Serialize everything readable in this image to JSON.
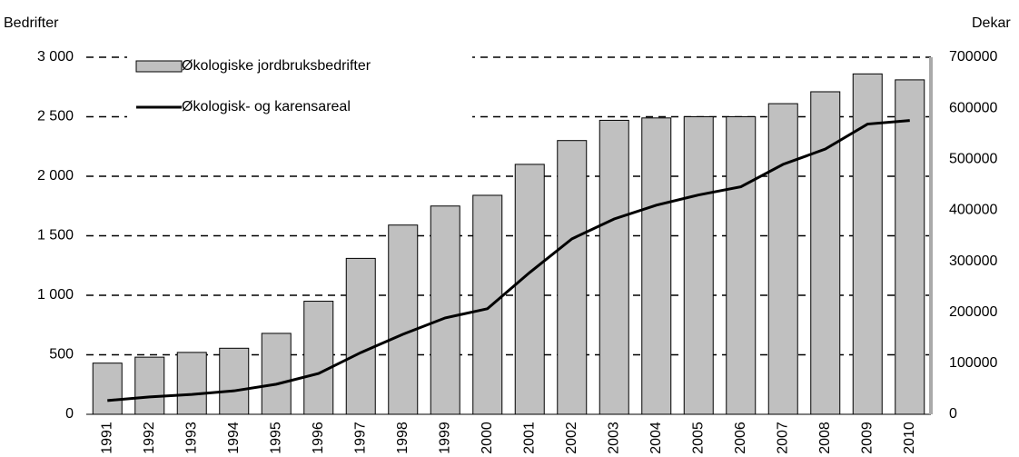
{
  "chart_data": {
    "type": "bar_line",
    "y_label": "Bedrifter",
    "y2_label": "Dekar",
    "categories": [
      "1991",
      "1992",
      "1993",
      "1994",
      "1995",
      "1996",
      "1997",
      "1998",
      "1999",
      "2000",
      "2001",
      "2002",
      "2003",
      "2004",
      "2005",
      "2006",
      "2007",
      "2008",
      "2009",
      "2010"
    ],
    "series": [
      {
        "name": "Økologiske jordbruksbedrifter",
        "type": "bar",
        "color": "#c0c0c0",
        "values": [
          430,
          480,
          520,
          555,
          680,
          950,
          1310,
          1590,
          1750,
          1840,
          2100,
          2300,
          2470,
          2490,
          2500,
          2500,
          2610,
          2710,
          2860,
          2810
        ]
      },
      {
        "name": "Økologisk- og karensareal",
        "type": "line",
        "color": "#000000",
        "axis": "y2",
        "values": [
          27000,
          34000,
          39000,
          46000,
          59000,
          80000,
          121000,
          157000,
          189000,
          207000,
          278000,
          344000,
          383000,
          410000,
          430000,
          446000,
          490000,
          520000,
          569000,
          576000
        ]
      }
    ],
    "ylim": [
      0,
      3000
    ],
    "yticks": [
      0,
      500,
      {
        "value": 1000,
        "label": "1 000"
      },
      {
        "value": 1500,
        "label": "1 500"
      },
      {
        "value": 2000,
        "label": "2 000"
      },
      {
        "value": 2500,
        "label": "2 500"
      },
      {
        "value": 3000,
        "label": "3 000"
      }
    ],
    "y2lim": [
      0,
      700000
    ],
    "y2ticks": [
      0,
      100000,
      200000,
      300000,
      400000,
      500000,
      600000,
      700000
    ],
    "grid": true,
    "legend": "upper left"
  }
}
